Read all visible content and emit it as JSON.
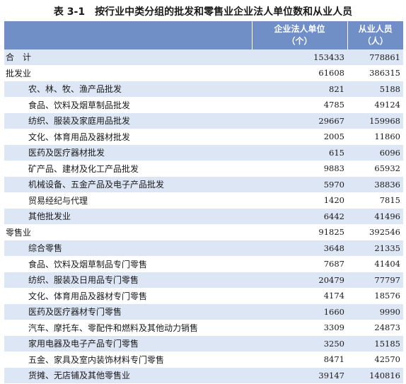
{
  "title": {
    "code": "表 3-1",
    "text": "按行业中类分组的批发和零售业企业法人单位数和从业人员"
  },
  "columns": [
    {
      "label": ""
    },
    {
      "label": "企业法人单位",
      "unit": "（个）"
    },
    {
      "label": "从业人员",
      "unit": "（人）"
    }
  ],
  "rows": [
    {
      "name": "合　计",
      "level": 0,
      "units": "153433",
      "employees": "778861"
    },
    {
      "name": "批发业",
      "level": 0,
      "units": "61608",
      "employees": "386315"
    },
    {
      "name": "农、林、牧、渔产品批发",
      "level": 1,
      "units": "821",
      "employees": "5188"
    },
    {
      "name": "食品、饮料及烟草制品批发",
      "level": 1,
      "units": "4785",
      "employees": "49124"
    },
    {
      "name": "纺织、服装及家庭用品批发",
      "level": 1,
      "units": "29667",
      "employees": "159968"
    },
    {
      "name": "文化、体育用品及器材批发",
      "level": 1,
      "units": "2005",
      "employees": "11860"
    },
    {
      "name": "医药及医疗器材批发",
      "level": 1,
      "units": "615",
      "employees": "6096"
    },
    {
      "name": "矿产品、建材及化工产品批发",
      "level": 1,
      "units": "9883",
      "employees": "65932"
    },
    {
      "name": "机械设备、五金产品及电子产品批发",
      "level": 1,
      "units": "5970",
      "employees": "38836"
    },
    {
      "name": "贸易经纪与代理",
      "level": 1,
      "units": "1420",
      "employees": "7815"
    },
    {
      "name": "其他批发业",
      "level": 1,
      "units": "6442",
      "employees": "41496"
    },
    {
      "name": "零售业",
      "level": 0,
      "units": "91825",
      "employees": "392546"
    },
    {
      "name": "综合零售",
      "level": 1,
      "units": "3648",
      "employees": "21335"
    },
    {
      "name": "食品、饮料及烟草制品专门零售",
      "level": 1,
      "units": "7687",
      "employees": "41404"
    },
    {
      "name": "纺织、服装及日用品专门零售",
      "level": 1,
      "units": "20479",
      "employees": "77797"
    },
    {
      "name": "文化、体育用品及器材专门零售",
      "level": 1,
      "units": "4174",
      "employees": "18576"
    },
    {
      "name": "医药及医疗器材专门零售",
      "level": 1,
      "units": "1660",
      "employees": "9990"
    },
    {
      "name": "汽车、摩托车、零配件和燃料及其他动力销售",
      "level": 1,
      "units": "3309",
      "employees": "24873"
    },
    {
      "name": "家用电器及电子产品专门零售",
      "level": 1,
      "units": "3250",
      "employees": "15185"
    },
    {
      "name": "五金、家具及室内装饰材料专门零售",
      "level": 1,
      "units": "8471",
      "employees": "42570"
    },
    {
      "name": "货摊、无店铺及其他零售业",
      "level": 1,
      "units": "39147",
      "employees": "140816"
    }
  ]
}
